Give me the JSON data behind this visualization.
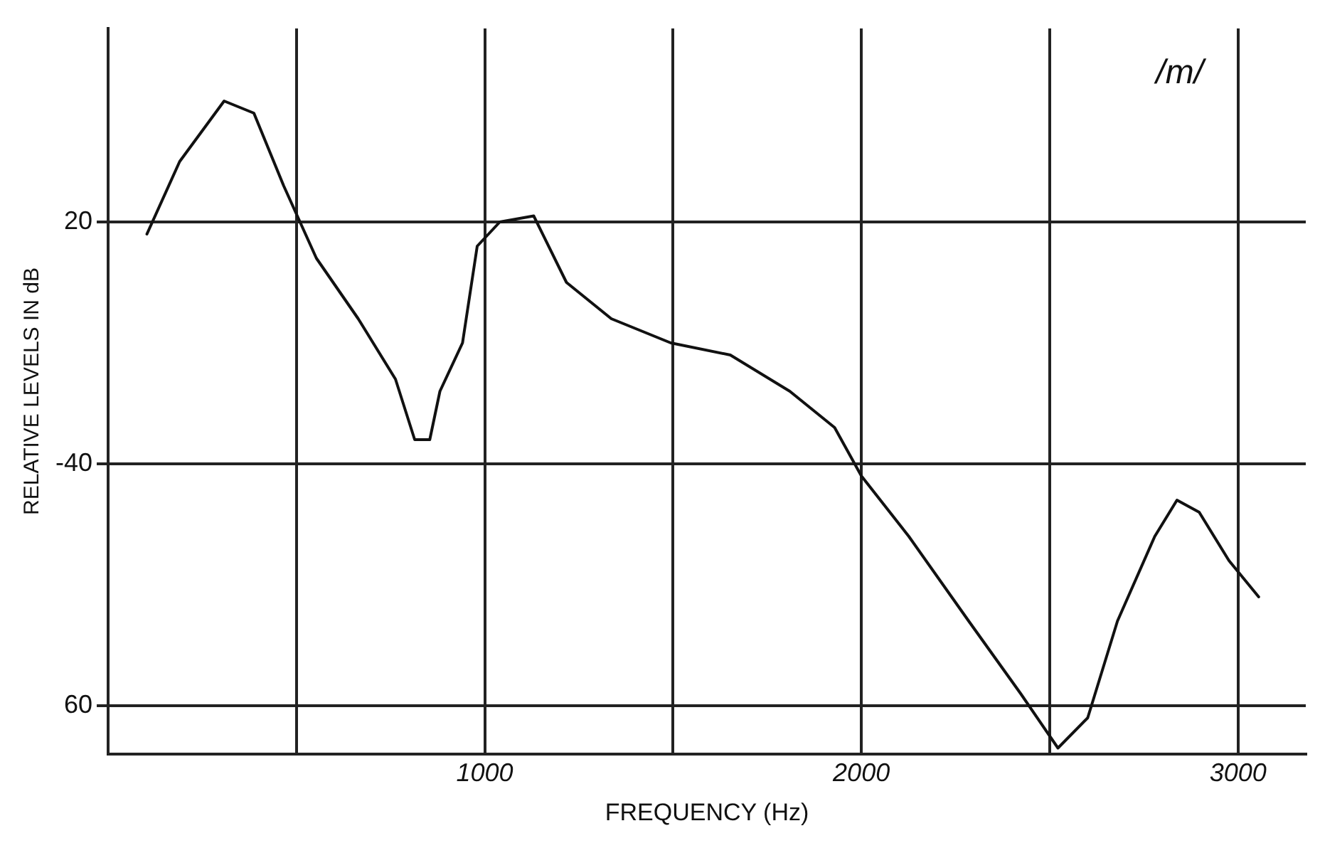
{
  "chart_data": {
    "type": "line",
    "xlabel": "FREQUENCY (Hz)",
    "ylabel": "RELATIVE LEVELS IN dB",
    "annotations": [
      "/m/"
    ],
    "x": [
      103,
      190,
      308,
      387,
      466,
      553,
      664,
      763,
      814,
      854,
      881,
      941,
      980,
      1040,
      1130,
      1217,
      1336,
      1494,
      1652,
      1810,
      1929,
      2000,
      2126,
      2285,
      2423,
      2522,
      2601,
      2680,
      2779,
      2838,
      2897,
      2976,
      3055
    ],
    "series": [
      {
        "color": "#111111",
        "values": [
          -21,
          -15,
          -10,
          -11,
          -17,
          -23,
          -28,
          -33,
          -38,
          -38,
          -34,
          -30,
          -22,
          -20,
          -19.5,
          -25,
          -28,
          -30,
          -31,
          -34,
          -37,
          -41,
          -46,
          -53,
          -59,
          -63.5,
          -61,
          -53,
          -46,
          -43,
          -44,
          -48,
          -51
        ]
      }
    ],
    "xlim": [
      0,
      3180
    ],
    "xticks": [
      {
        "value": 500,
        "label": null
      },
      1000,
      {
        "value": 1500,
        "label": null
      },
      2000,
      {
        "value": 2500,
        "label": null
      },
      3000
    ],
    "ylim": [
      -64,
      -4
    ],
    "yticks": [
      {
        "value": -20,
        "label": "20"
      },
      -40,
      {
        "value": -60,
        "label": "60"
      }
    ],
    "grid": true,
    "legend": false,
    "marker": "none",
    "line_style": "solid"
  }
}
